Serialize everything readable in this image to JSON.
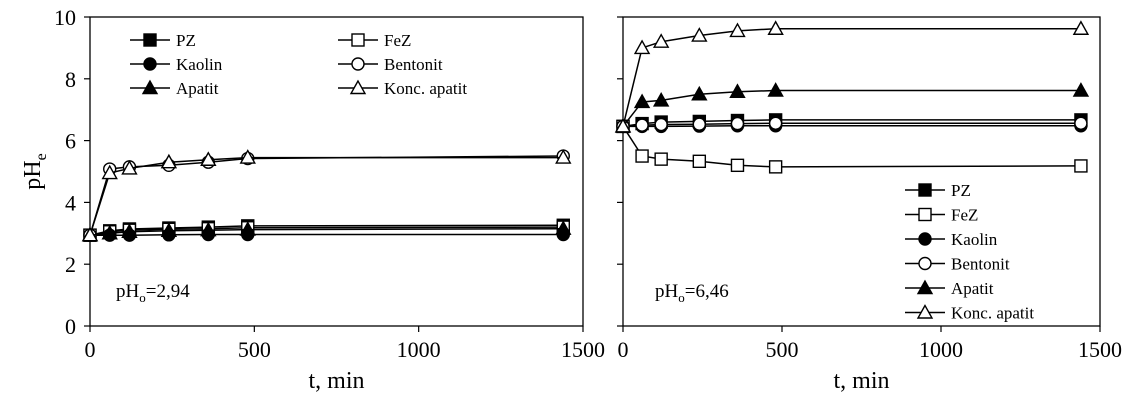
{
  "chart_data": [
    {
      "type": "line",
      "panel": "left",
      "xlabel": "t, min",
      "ylabel": "pH",
      "ylabel_sub": "e",
      "xlim": [
        0,
        1500
      ],
      "ylim": [
        0,
        10
      ],
      "xticks": [
        0,
        500,
        1000,
        1500
      ],
      "yticks": [
        0,
        2,
        4,
        6,
        8,
        10
      ],
      "grid": false,
      "legend_position": "top",
      "annotation": {
        "main": "pH",
        "sub": "o",
        "value": "=2,94"
      },
      "series": [
        {
          "name": "PZ",
          "marker": "square-filled",
          "x": [
            0,
            60,
            120,
            240,
            360,
            480,
            1440
          ],
          "y": [
            2.94,
            3.08,
            3.14,
            3.17,
            3.2,
            3.24,
            3.26
          ]
        },
        {
          "name": "FeZ",
          "marker": "square-open",
          "x": [
            0,
            60,
            120,
            240,
            360,
            480,
            1440
          ],
          "y": [
            2.94,
            3.05,
            3.1,
            3.13,
            3.15,
            3.18,
            3.2
          ]
        },
        {
          "name": "Kaolin",
          "marker": "circle-filled",
          "x": [
            0,
            60,
            120,
            240,
            360,
            480,
            1440
          ],
          "y": [
            2.94,
            2.94,
            2.94,
            2.95,
            2.96,
            2.96,
            2.96
          ]
        },
        {
          "name": "Bentonit",
          "marker": "circle-open",
          "x": [
            0,
            60,
            120,
            240,
            360,
            480,
            1440
          ],
          "y": [
            2.94,
            5.08,
            5.15,
            5.2,
            5.3,
            5.42,
            5.5
          ]
        },
        {
          "name": "Apatit",
          "marker": "triangle-filled",
          "x": [
            0,
            60,
            120,
            240,
            360,
            480,
            1440
          ],
          "y": [
            2.94,
            3.0,
            3.05,
            3.08,
            3.1,
            3.12,
            3.15
          ]
        },
        {
          "name": "Konc. apatit",
          "marker": "triangle-open",
          "x": [
            0,
            60,
            120,
            240,
            360,
            480,
            1440
          ],
          "y": [
            2.94,
            4.95,
            5.1,
            5.3,
            5.38,
            5.45,
            5.45
          ]
        }
      ]
    },
    {
      "type": "line",
      "panel": "right",
      "xlabel": "t, min",
      "xlim": [
        0,
        1500
      ],
      "ylim": [
        0,
        10
      ],
      "xticks": [
        0,
        500,
        1000,
        1500
      ],
      "grid": false,
      "legend_position": "bottom-right",
      "annotation": {
        "main": "pH",
        "sub": "o",
        "value": "=6,46"
      },
      "series": [
        {
          "name": "PZ",
          "marker": "square-filled",
          "x": [
            0,
            60,
            120,
            240,
            360,
            480,
            1440
          ],
          "y": [
            6.46,
            6.55,
            6.6,
            6.62,
            6.65,
            6.67,
            6.67
          ]
        },
        {
          "name": "FeZ",
          "marker": "square-open",
          "x": [
            0,
            60,
            120,
            240,
            360,
            480,
            1440
          ],
          "y": [
            6.46,
            5.5,
            5.4,
            5.33,
            5.2,
            5.15,
            5.18
          ]
        },
        {
          "name": "Kaolin",
          "marker": "circle-filled",
          "x": [
            0,
            60,
            120,
            240,
            360,
            480,
            1440
          ],
          "y": [
            6.46,
            6.46,
            6.46,
            6.47,
            6.48,
            6.48,
            6.48
          ]
        },
        {
          "name": "Bentonit",
          "marker": "circle-open",
          "x": [
            0,
            60,
            120,
            240,
            360,
            480,
            1440
          ],
          "y": [
            6.46,
            6.5,
            6.52,
            6.53,
            6.55,
            6.56,
            6.56
          ]
        },
        {
          "name": "Apatit",
          "marker": "triangle-filled",
          "x": [
            0,
            60,
            120,
            240,
            360,
            480,
            1440
          ],
          "y": [
            6.46,
            7.25,
            7.3,
            7.5,
            7.58,
            7.62,
            7.62
          ]
        },
        {
          "name": "Konc. apatit",
          "marker": "triangle-open",
          "x": [
            0,
            60,
            120,
            240,
            360,
            480,
            1440
          ],
          "y": [
            6.46,
            9.0,
            9.2,
            9.4,
            9.55,
            9.62,
            9.62
          ]
        }
      ]
    }
  ]
}
